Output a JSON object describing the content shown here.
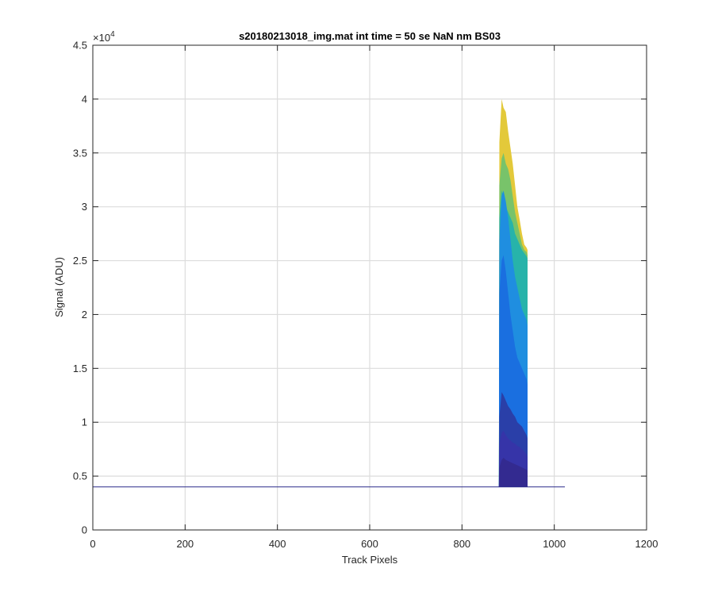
{
  "chart_data": {
    "type": "area",
    "title": "s20180213018_img.mat int time = 50 se  NaN nm BS03",
    "xlabel": "Track Pixels",
    "ylabel": "Signal (ADU)",
    "xlim": [
      0,
      1200
    ],
    "ylim": [
      0,
      45000
    ],
    "y_exponent_label": "×10",
    "y_exponent_power": "4",
    "xticks": [
      0,
      200,
      400,
      600,
      800,
      1000,
      1200
    ],
    "xtick_labels": [
      "0",
      "200",
      "400",
      "600",
      "800",
      "1000",
      "1200"
    ],
    "yticks": [
      0,
      5000,
      10000,
      15000,
      20000,
      25000,
      30000,
      35000,
      40000,
      45000
    ],
    "ytick_labels": [
      "0",
      "0.5",
      "1",
      "1.5",
      "2",
      "2.5",
      "3",
      "3.5",
      "4",
      "4.5"
    ],
    "grid": true,
    "baseline": {
      "value": 4000,
      "x_start": 0,
      "x_end": 1023,
      "color": "#2a2a8a"
    },
    "peak_region": {
      "x_start": 880,
      "x_end": 942,
      "base": 4000
    },
    "series": [
      {
        "color": "#e3c93a",
        "values": [
          [
            881,
            36000
          ],
          [
            886,
            40000
          ],
          [
            890,
            39200
          ],
          [
            895,
            38800
          ],
          [
            900,
            37000
          ],
          [
            905,
            35500
          ],
          [
            910,
            34000
          ],
          [
            915,
            32000
          ],
          [
            920,
            30000
          ],
          [
            925,
            28800
          ],
          [
            930,
            27500
          ],
          [
            935,
            26500
          ],
          [
            940,
            26200
          ],
          [
            942,
            26000
          ]
        ]
      },
      {
        "color": "#78c36a",
        "values": [
          [
            881,
            32000
          ],
          [
            886,
            34500
          ],
          [
            890,
            35000
          ],
          [
            895,
            34000
          ],
          [
            900,
            33500
          ],
          [
            905,
            32500
          ],
          [
            910,
            31000
          ],
          [
            915,
            29500
          ],
          [
            920,
            28500
          ],
          [
            925,
            27500
          ],
          [
            930,
            26500
          ],
          [
            935,
            26000
          ],
          [
            940,
            25800
          ],
          [
            942,
            25500
          ]
        ]
      },
      {
        "color": "#27b3aa",
        "values": [
          [
            881,
            29000
          ],
          [
            886,
            31500
          ],
          [
            890,
            31000
          ],
          [
            895,
            30000
          ],
          [
            900,
            29500
          ],
          [
            905,
            29000
          ],
          [
            910,
            28500
          ],
          [
            915,
            27500
          ],
          [
            920,
            27000
          ],
          [
            925,
            26500
          ],
          [
            930,
            26000
          ],
          [
            935,
            25700
          ],
          [
            940,
            25400
          ],
          [
            942,
            25200
          ]
        ]
      },
      {
        "color": "#1f8ee0",
        "values": [
          [
            881,
            27000
          ],
          [
            886,
            31000
          ],
          [
            890,
            31500
          ],
          [
            895,
            30500
          ],
          [
            900,
            29000
          ],
          [
            905,
            27000
          ],
          [
            910,
            25000
          ],
          [
            915,
            23500
          ],
          [
            920,
            22500
          ],
          [
            925,
            21500
          ],
          [
            930,
            20500
          ],
          [
            935,
            20000
          ],
          [
            940,
            19500
          ],
          [
            942,
            19000
          ]
        ]
      },
      {
        "color": "#1a6fe0",
        "values": [
          [
            881,
            22000
          ],
          [
            886,
            25000
          ],
          [
            890,
            25500
          ],
          [
            895,
            24000
          ],
          [
            900,
            22000
          ],
          [
            905,
            20000
          ],
          [
            910,
            18500
          ],
          [
            915,
            17000
          ],
          [
            920,
            16000
          ],
          [
            925,
            15500
          ],
          [
            930,
            15000
          ],
          [
            935,
            14500
          ],
          [
            940,
            14000
          ],
          [
            942,
            13500
          ]
        ]
      },
      {
        "color": "#2a3fa8",
        "values": [
          [
            881,
            10500
          ],
          [
            886,
            12800
          ],
          [
            890,
            12500
          ],
          [
            895,
            12000
          ],
          [
            900,
            11500
          ],
          [
            905,
            11200
          ],
          [
            910,
            10800
          ],
          [
            915,
            10500
          ],
          [
            920,
            10000
          ],
          [
            925,
            9800
          ],
          [
            930,
            9600
          ],
          [
            935,
            9200
          ],
          [
            940,
            8800
          ],
          [
            942,
            8500
          ]
        ]
      },
      {
        "color": "#3634a8",
        "values": [
          [
            881,
            8000
          ],
          [
            886,
            9000
          ],
          [
            890,
            9200
          ],
          [
            895,
            8800
          ],
          [
            900,
            8500
          ],
          [
            905,
            8300
          ],
          [
            910,
            8100
          ],
          [
            915,
            8000
          ],
          [
            920,
            7800
          ],
          [
            925,
            7700
          ],
          [
            930,
            7500
          ],
          [
            935,
            7300
          ],
          [
            940,
            7000
          ],
          [
            942,
            6800
          ]
        ]
      },
      {
        "color": "#332a90",
        "values": [
          [
            881,
            5800
          ],
          [
            886,
            6500
          ],
          [
            890,
            6700
          ],
          [
            895,
            6500
          ],
          [
            900,
            6400
          ],
          [
            905,
            6300
          ],
          [
            910,
            6200
          ],
          [
            915,
            6100
          ],
          [
            920,
            6000
          ],
          [
            925,
            5900
          ],
          [
            930,
            5800
          ],
          [
            935,
            5700
          ],
          [
            940,
            5600
          ],
          [
            942,
            5500
          ]
        ]
      }
    ]
  }
}
